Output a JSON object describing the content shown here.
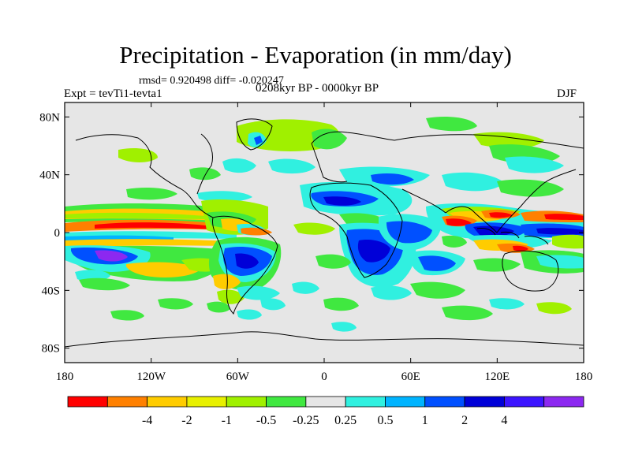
{
  "title": "Precipitation - Evaporation (in mm/day)",
  "stats": "rmsd= 0.920498 diff= -0.020247",
  "experiment": "Expt = tevTi1-tevta1",
  "period": "0208kyr BP - 0000kyr BP",
  "season": "DJF",
  "map": {
    "projection": "cylindrical-equidistant",
    "lon_range": [
      -180,
      180
    ],
    "lat_range": [
      -90,
      90
    ],
    "lat_ticks": [
      {
        "lat": 80,
        "label": "80N"
      },
      {
        "lat": 40,
        "label": "40N"
      },
      {
        "lat": 0,
        "label": "0"
      },
      {
        "lat": -40,
        "label": "40S"
      },
      {
        "lat": -80,
        "label": "80S"
      }
    ],
    "lon_ticks": [
      {
        "lon": -180,
        "label": "180"
      },
      {
        "lon": -120,
        "label": "120W"
      },
      {
        "lon": -60,
        "label": "60W"
      },
      {
        "lon": 0,
        "label": "0"
      },
      {
        "lon": 60,
        "label": "60E"
      },
      {
        "lon": 120,
        "label": "120E"
      },
      {
        "lon": 180,
        "label": "180"
      }
    ],
    "background_color": "#e6e6e6"
  },
  "colorbar": {
    "colors": [
      "#ff0000",
      "#ff8000",
      "#ffcc00",
      "#e8f000",
      "#a0f000",
      "#40e840",
      "#e6e6e6",
      "#30f0e0",
      "#00b4ff",
      "#0050ff",
      "#0000d8",
      "#3c14ff",
      "#8c28f0"
    ],
    "labels": [
      "-4",
      "-2",
      "-1",
      "-0.5",
      "-0.25",
      "0.25",
      "0.5",
      "1",
      "2",
      "4"
    ]
  }
}
